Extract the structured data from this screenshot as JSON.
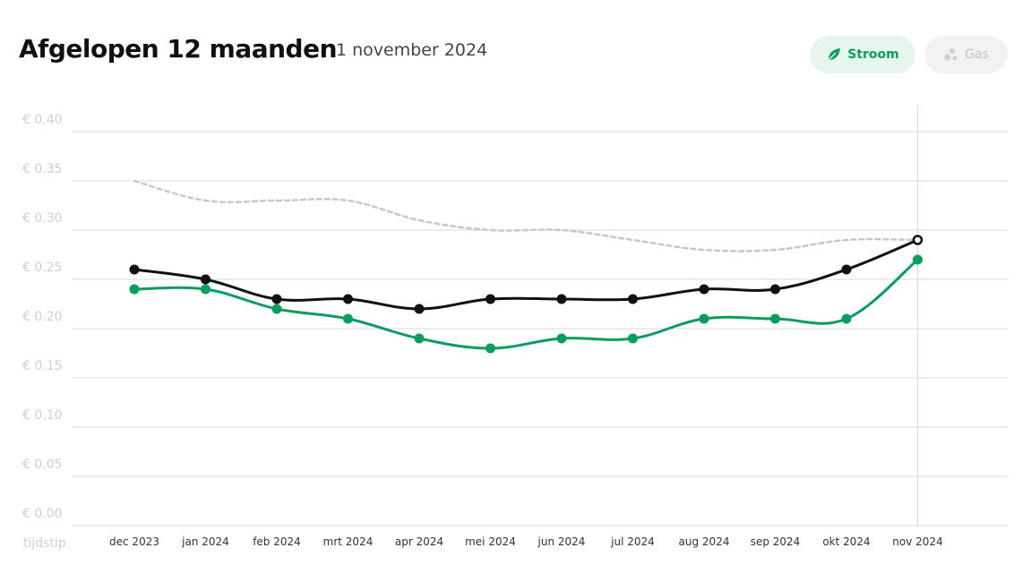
{
  "header": {
    "title": "Afgelopen 12 maanden",
    "date": "1 november 2024"
  },
  "toggles": {
    "stroom": {
      "label": "Stroom",
      "icon": "leaf-icon",
      "active": true
    },
    "gas": {
      "label": "Gas",
      "icon": "gas-bubbles-icon",
      "active": false
    }
  },
  "colors": {
    "accent": "#0b9d5e",
    "black_line": "#111111",
    "dashed_line": "#c8c8c8",
    "grid": "#d9d9d9",
    "axis_label": "#cfcfcf"
  },
  "chart_data": {
    "type": "line",
    "xlabel": "tijdstip",
    "ylabel": "",
    "categories": [
      "dec 2023",
      "jan 2024",
      "feb 2024",
      "mrt 2024",
      "apr 2024",
      "mei 2024",
      "jun 2024",
      "jul 2024",
      "aug 2024",
      "sep 2024",
      "okt 2024",
      "nov 2024"
    ],
    "ylim": [
      0,
      0.4
    ],
    "yticks": [
      0.0,
      0.05,
      0.1,
      0.15,
      0.2,
      0.25,
      0.3,
      0.35,
      0.4
    ],
    "ytick_labels": [
      "€ 0.00",
      "€ 0.05",
      "€ 0.10",
      "€ 0.15",
      "€ 0.20",
      "€ 0.25",
      "€ 0.30",
      "€ 0.35",
      "€ 0.40"
    ],
    "grid": true,
    "highlight_category": "nov 2024",
    "series": [
      {
        "key": "dashed",
        "style": "dashed",
        "color": "#c8c8c8",
        "markers": false,
        "values": [
          0.35,
          0.33,
          0.33,
          0.33,
          0.31,
          0.3,
          0.3,
          0.29,
          0.28,
          0.28,
          0.29,
          0.29
        ]
      },
      {
        "key": "black",
        "style": "solid",
        "color": "#111111",
        "markers": true,
        "last_marker_hollow": true,
        "values": [
          0.26,
          0.25,
          0.23,
          0.23,
          0.22,
          0.23,
          0.23,
          0.23,
          0.24,
          0.24,
          0.26,
          0.29
        ]
      },
      {
        "key": "green",
        "style": "solid",
        "color": "#0b9d5e",
        "markers": true,
        "last_marker_hollow": false,
        "values": [
          0.24,
          0.24,
          0.22,
          0.21,
          0.19,
          0.18,
          0.19,
          0.19,
          0.21,
          0.21,
          0.21,
          0.27
        ]
      }
    ]
  }
}
